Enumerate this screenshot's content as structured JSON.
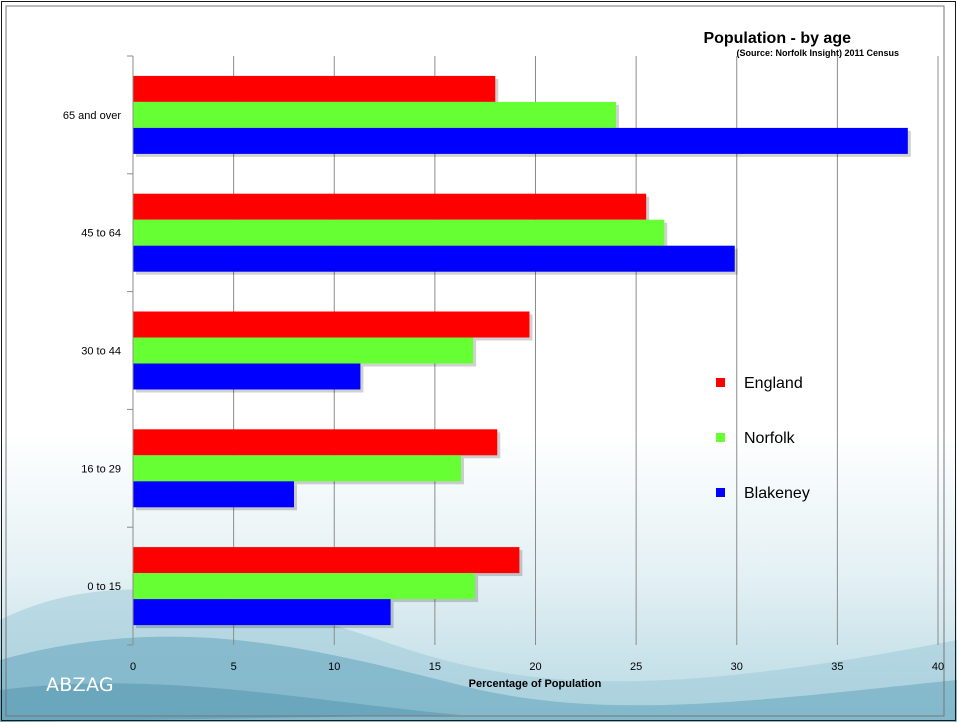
{
  "brand": "ABZAG",
  "chart_data": {
    "type": "bar",
    "orientation": "horizontal",
    "title": "Population - by age",
    "subtitle": "(Source: Norfolk Insight) 2011 Census",
    "xlabel": "Percentage of Population",
    "ylabel": "",
    "xlim": [
      0,
      40
    ],
    "x_ticks": [
      0,
      5,
      10,
      15,
      20,
      25,
      30,
      35,
      40
    ],
    "grid": "vertical",
    "legend_placement": "right",
    "categories": [
      "65 and over",
      "45 to 64",
      "30 to 44",
      "16 to 29",
      "0 to 15"
    ],
    "series": [
      {
        "name": "England",
        "color": "#ff0000",
        "values": [
          18.0,
          25.5,
          19.7,
          18.1,
          19.2
        ]
      },
      {
        "name": "Norfolk",
        "color": "#66ff33",
        "values": [
          24.0,
          26.4,
          16.9,
          16.3,
          17.0
        ]
      },
      {
        "name": "Blakeney",
        "color": "#0000ff",
        "values": [
          38.5,
          29.9,
          11.3,
          8.0,
          12.8
        ]
      }
    ]
  }
}
